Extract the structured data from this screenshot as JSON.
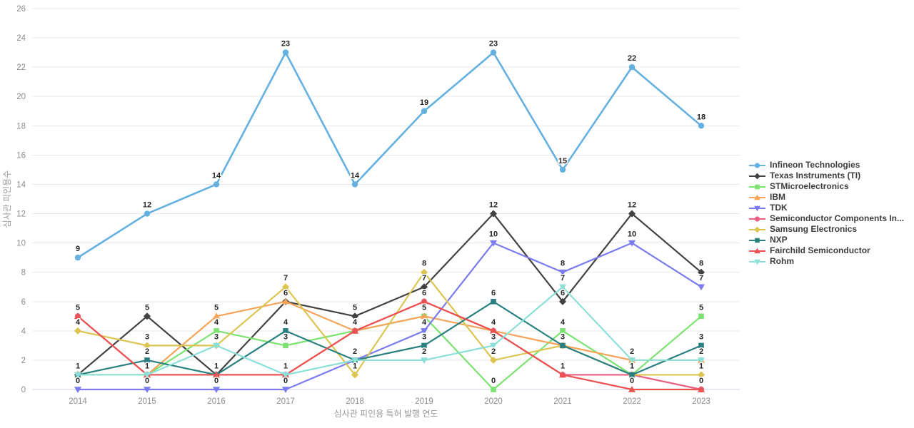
{
  "chart_data": {
    "type": "line",
    "title": "",
    "xlabel": "심사관 피인용 특허 발행 연도",
    "ylabel": "심사관 피인용수",
    "x": [
      2014,
      2015,
      2016,
      2017,
      2018,
      2019,
      2020,
      2021,
      2022,
      2023
    ],
    "ylim": [
      0,
      26
    ],
    "ytick_step": 2,
    "grid": true,
    "legend_position": "right",
    "point_labels": true,
    "series": [
      {
        "name": "Infineon Technologies",
        "color": "#64b0e0",
        "marker": "circle",
        "values": [
          9,
          12,
          14,
          23,
          14,
          19,
          23,
          15,
          22,
          18
        ]
      },
      {
        "name": "Texas Instruments (TI)",
        "color": "#424242",
        "marker": "diamond",
        "values": [
          1,
          5,
          1,
          6,
          5,
          7,
          12,
          6,
          12,
          8
        ]
      },
      {
        "name": "STMicroelectronics",
        "color": "#7ce372",
        "marker": "square",
        "values": [
          1,
          1,
          4,
          3,
          4,
          5,
          0,
          4,
          1,
          5
        ]
      },
      {
        "name": "IBM",
        "color": "#f5a45a",
        "marker": "triangle-up",
        "values": [
          1,
          1,
          5,
          6,
          4,
          5,
          4,
          3,
          2,
          2
        ]
      },
      {
        "name": "TDK",
        "color": "#7b7bed",
        "marker": "triangle-down",
        "values": [
          0,
          0,
          0,
          0,
          2,
          4,
          10,
          8,
          10,
          7
        ]
      },
      {
        "name": "Semiconductor Components In...",
        "color": "#e85f80",
        "marker": "circle",
        "values": [
          5,
          1,
          1,
          1,
          4,
          6,
          4,
          1,
          1,
          0
        ]
      },
      {
        "name": "Samsung Electronics",
        "color": "#ddc552",
        "marker": "diamond",
        "values": [
          4,
          3,
          3,
          7,
          1,
          8,
          2,
          3,
          1,
          1
        ]
      },
      {
        "name": "NXP",
        "color": "#2a8080",
        "marker": "square",
        "values": [
          1,
          2,
          1,
          4,
          2,
          3,
          6,
          3,
          1,
          3
        ]
      },
      {
        "name": "Fairchild Semiconductor",
        "color": "#ea5252",
        "marker": "triangle-up",
        "values": [
          5,
          1,
          1,
          1,
          4,
          6,
          4,
          1,
          0,
          0
        ]
      },
      {
        "name": "Rohm",
        "color": "#8ce0d8",
        "marker": "triangle-down",
        "values": [
          1,
          1,
          3,
          1,
          2,
          2,
          3,
          7,
          2,
          2
        ]
      }
    ]
  },
  "ui": {
    "grid_color": "#e9e9e9",
    "zero_line_color": "#ccd2ee",
    "tick_color": "#8c8c8c",
    "axis_title_color": "#9a9a9a",
    "point_label_color": "#262626",
    "legend_text_color": "#3d3d3d",
    "background": "#ffffff"
  }
}
